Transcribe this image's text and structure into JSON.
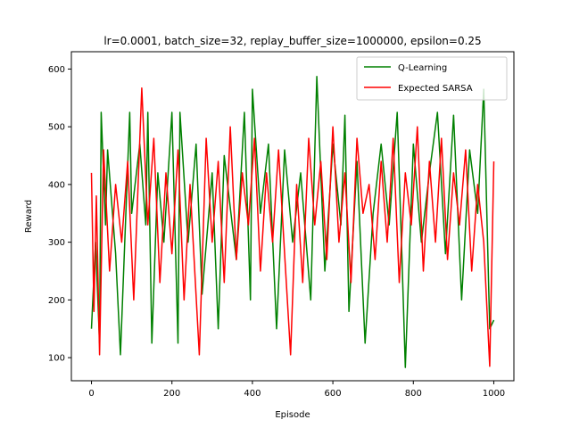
{
  "chart_data": {
    "type": "line",
    "title": "lr=0.0001, batch_size=32, replay_buffer_size=1000000, epsilon=0.25",
    "xlabel": "Episode",
    "ylabel": "Reward",
    "xlim": [
      -50,
      1050
    ],
    "ylim": [
      60,
      630
    ],
    "xticks": [
      0,
      200,
      400,
      600,
      800,
      1000
    ],
    "yticks": [
      100,
      200,
      300,
      400,
      500,
      600
    ],
    "grid": false,
    "legend_position": "top-right",
    "series": [
      {
        "name": "Q-Learning",
        "color": "#008000",
        "x": [
          0,
          10,
          20,
          24,
          35,
          40,
          60,
          72,
          95,
          100,
          120,
          135,
          140,
          150,
          165,
          180,
          200,
          215,
          220,
          240,
          260,
          275,
          300,
          315,
          330,
          360,
          380,
          395,
          400,
          420,
          440,
          460,
          480,
          500,
          520,
          545,
          560,
          580,
          600,
          620,
          630,
          640,
          660,
          680,
          700,
          720,
          740,
          760,
          772,
          780,
          800,
          820,
          840,
          860,
          880,
          900,
          920,
          940,
          960,
          975,
          990,
          1000
        ],
        "y": [
          150,
          300,
          125,
          525,
          330,
          460,
          280,
          105,
          525,
          350,
          470,
          330,
          525,
          125,
          420,
          300,
          525,
          125,
          525,
          300,
          470,
          210,
          420,
          150,
          450,
          270,
          525,
          200,
          565,
          350,
          470,
          150,
          460,
          300,
          420,
          200,
          587,
          250,
          470,
          330,
          520,
          180,
          440,
          125,
          350,
          470,
          330,
          525,
          270,
          83,
          470,
          300,
          420,
          525,
          280,
          520,
          200,
          460,
          350,
          565,
          150,
          165
        ]
      },
      {
        "name": "Expected SARSA",
        "color": "#ff0000",
        "x": [
          0,
          6,
          12,
          20,
          30,
          45,
          60,
          75,
          90,
          105,
          125,
          140,
          155,
          170,
          185,
          200,
          215,
          230,
          245,
          268,
          285,
          300,
          315,
          330,
          345,
          360,
          375,
          390,
          405,
          420,
          435,
          450,
          465,
          480,
          495,
          510,
          525,
          540,
          555,
          570,
          585,
          600,
          615,
          630,
          645,
          660,
          675,
          690,
          705,
          720,
          735,
          750,
          765,
          780,
          795,
          810,
          825,
          840,
          855,
          870,
          885,
          900,
          915,
          930,
          945,
          960,
          975,
          990,
          1000
        ],
        "y": [
          420,
          180,
          380,
          105,
          460,
          250,
          400,
          300,
          440,
          200,
          567,
          330,
          480,
          230,
          420,
          280,
          460,
          200,
          400,
          105,
          480,
          300,
          440,
          230,
          500,
          270,
          420,
          330,
          480,
          250,
          420,
          300,
          460,
          280,
          105,
          400,
          230,
          480,
          330,
          440,
          270,
          500,
          300,
          420,
          230,
          480,
          350,
          400,
          270,
          440,
          300,
          480,
          230,
          420,
          330,
          500,
          250,
          440,
          300,
          480,
          270,
          420,
          330,
          460,
          250,
          400,
          300,
          85,
          440
        ]
      }
    ]
  }
}
